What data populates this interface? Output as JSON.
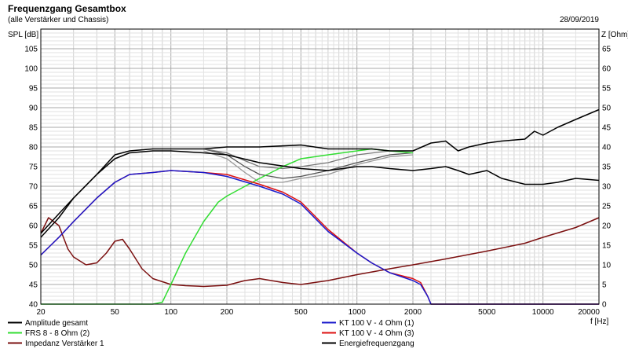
{
  "header": {
    "title": "Frequenzgang Gesamtbox",
    "subtitle": "(alle Verstärker und Chassis)",
    "date": "28/09/2019"
  },
  "chart_data": {
    "type": "line",
    "title": "Frequenzgang Gesamtbox",
    "xlabel": "f [Hz]",
    "ylabel": "SPL [dB]",
    "y2label": "Z [Ohm]",
    "xscale": "log",
    "xlim": [
      20,
      20000
    ],
    "ylim": [
      40,
      110
    ],
    "y2lim": [
      0,
      70
    ],
    "grid": true,
    "x_tick_labels": [
      {
        "x": 20,
        "label": "20"
      },
      {
        "x": 50,
        "label": "50"
      },
      {
        "x": 100,
        "label": "100"
      },
      {
        "x": 200,
        "label": "200"
      },
      {
        "x": 500,
        "label": "500"
      },
      {
        "x": 1000,
        "label": "1000"
      },
      {
        "x": 2000,
        "label": "2000"
      },
      {
        "x": 5000,
        "label": "5000"
      },
      {
        "x": 10000,
        "label": "10000"
      },
      {
        "x": 20000,
        "label": "20000"
      }
    ],
    "y_tick_labels": [
      "40",
      "45",
      "50",
      "55",
      "60",
      "65",
      "70",
      "75",
      "80",
      "85",
      "90",
      "95",
      "100",
      "105"
    ],
    "y2_tick_labels": [
      "0",
      "5",
      "10",
      "15",
      "20",
      "25",
      "30",
      "35",
      "40",
      "45",
      "50",
      "55",
      "60",
      "65"
    ],
    "legend": {
      "placement": "bottom"
    },
    "series": [
      {
        "name": "Amplitude gesamt",
        "color": "#000000",
        "axis": "left",
        "x": [
          20,
          25,
          30,
          40,
          50,
          60,
          80,
          100,
          150,
          200,
          300,
          500,
          700,
          1000,
          1200,
          1500,
          2000,
          2500,
          3000,
          3500,
          4000,
          5000,
          6000,
          8000,
          10000,
          12000,
          15000,
          20000
        ],
        "y": [
          58,
          63,
          67,
          73,
          77,
          78.5,
          79,
          79,
          78.5,
          78,
          76,
          74.5,
          74,
          75,
          75,
          74.5,
          74,
          74.5,
          75,
          74,
          73,
          74,
          72,
          70.5,
          70.5,
          71,
          72,
          71.5
        ]
      },
      {
        "name": "FRS 8 - 8 Ohm (2)",
        "color": "#33dd33",
        "axis": "left",
        "x": [
          20,
          50,
          80,
          90,
          100,
          120,
          150,
          180,
          200,
          300,
          400,
          500,
          700,
          1000,
          1200,
          1500,
          2000
        ],
        "y": [
          40,
          40,
          40,
          40.5,
          45,
          53,
          61,
          66,
          67.5,
          72,
          75,
          77,
          78,
          79,
          79.5,
          79,
          78.5
        ]
      },
      {
        "name": "Impedanz Verstärker 1",
        "color": "#7b1010",
        "axis": "right",
        "x": [
          20,
          22,
          25,
          28,
          30,
          35,
          40,
          45,
          50,
          55,
          60,
          70,
          80,
          100,
          120,
          150,
          200,
          250,
          300,
          400,
          500,
          700,
          1000,
          1500,
          2000,
          3000,
          5000,
          8000,
          10000,
          15000,
          20000
        ],
        "y": [
          18,
          22,
          20,
          14,
          12,
          10,
          10.5,
          13,
          16,
          16.5,
          14,
          9,
          6.5,
          5,
          4.7,
          4.5,
          4.8,
          6,
          6.5,
          5.5,
          5,
          6,
          7.5,
          9,
          10,
          11.5,
          13.5,
          15.5,
          17,
          19.5,
          22
        ]
      },
      {
        "name": "KT 100 V - 4 Ohm (1)",
        "color": "#1a1acc",
        "axis": "left",
        "x": [
          20,
          25,
          30,
          40,
          50,
          60,
          80,
          100,
          150,
          200,
          300,
          400,
          500,
          700,
          1000,
          1200,
          1500,
          2000,
          2200,
          2400,
          2500,
          3000,
          20000
        ],
        "y": [
          52.5,
          57,
          61,
          67,
          71,
          73,
          73.5,
          74,
          73.5,
          72.5,
          70,
          68,
          65.5,
          58.5,
          53,
          50.5,
          48,
          46,
          45,
          42,
          40,
          40,
          40
        ]
      },
      {
        "name": "KT 100 V - 4 Ohm (3)",
        "color": "#dd1111",
        "axis": "left",
        "x": [
          20,
          25,
          30,
          40,
          50,
          60,
          80,
          100,
          150,
          200,
          300,
          400,
          500,
          700,
          1000,
          1200,
          1500,
          2000,
          2200,
          2400,
          2500,
          3000,
          20000
        ],
        "y": [
          52.5,
          57,
          61,
          67,
          71,
          73,
          73.5,
          74,
          73.5,
          73,
          70.5,
          68.5,
          66,
          59,
          53,
          50.5,
          48,
          46.5,
          45.5,
          42,
          40,
          40,
          40
        ]
      },
      {
        "name": "Energiefrequenzgang",
        "color": "#000000",
        "axis": "left",
        "x": [
          20,
          25,
          30,
          40,
          50,
          60,
          80,
          100,
          150,
          200,
          300,
          500,
          700,
          1000,
          1200,
          1500,
          2000,
          2500,
          3000,
          3500,
          4000,
          5000,
          6000,
          8000,
          9000,
          10000,
          12000,
          15000,
          20000
        ],
        "y": [
          57,
          62,
          67,
          73,
          78,
          79,
          79.5,
          79.5,
          79.5,
          80,
          80,
          80.5,
          79.5,
          79.5,
          79.5,
          79,
          79,
          81,
          81.5,
          79,
          80,
          81,
          81.5,
          82,
          84,
          83,
          85,
          87,
          89.5
        ]
      }
    ],
    "secondary_curves": [
      {
        "color": "#555555",
        "axis": "left",
        "x": [
          150,
          200,
          250,
          300,
          400,
          500,
          700,
          1000,
          1500,
          2000
        ],
        "y": [
          79.5,
          78,
          75,
          73,
          72,
          72.5,
          74,
          76,
          78,
          78.5
        ]
      },
      {
        "color": "#999999",
        "axis": "left",
        "x": [
          150,
          200,
          250,
          300,
          400,
          500,
          700,
          1000,
          1500,
          2000
        ],
        "y": [
          79,
          77,
          73.5,
          71,
          71,
          72,
          73,
          75.5,
          77.5,
          78
        ]
      },
      {
        "color": "#777777",
        "axis": "left",
        "x": [
          150,
          200,
          250,
          300,
          400,
          500,
          700,
          1000,
          1500,
          2000
        ],
        "y": [
          79.5,
          78.5,
          76.5,
          75,
          74.5,
          75,
          76,
          78,
          79,
          79
        ]
      }
    ]
  }
}
